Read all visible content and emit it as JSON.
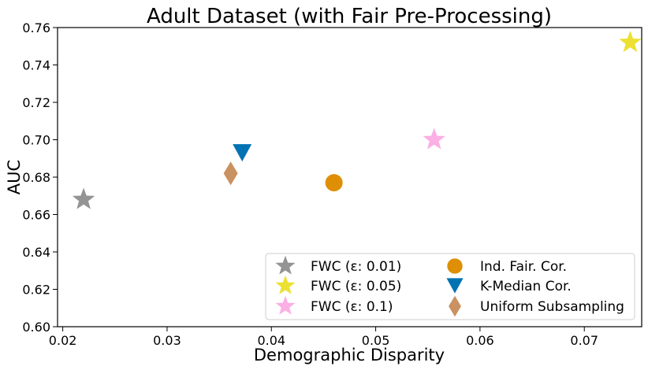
{
  "chart_data": {
    "type": "scatter",
    "title": "Adult Dataset (with Fair Pre-Processing)",
    "xlabel": "Demographic Disparity",
    "ylabel": "AUC",
    "xlim": [
      0.0195,
      0.0755
    ],
    "ylim": [
      0.6,
      0.76
    ],
    "xticks": [
      "0.02",
      "0.03",
      "0.04",
      "0.05",
      "0.06",
      "0.07"
    ],
    "yticks": [
      "0.60",
      "0.62",
      "0.64",
      "0.66",
      "0.68",
      "0.70",
      "0.72",
      "0.74",
      "0.76"
    ],
    "grid": false,
    "legend_position": "lower-right",
    "series": [
      {
        "name": "FWC (ε: 0.01)",
        "marker": "star",
        "color": "#949494",
        "x": 0.022,
        "y": 0.668
      },
      {
        "name": "FWC (ε: 0.05)",
        "marker": "star",
        "color": "#ece133",
        "x": 0.0744,
        "y": 0.752
      },
      {
        "name": "FWC (ε: 0.1)",
        "marker": "star",
        "color": "#fbafe4",
        "x": 0.0556,
        "y": 0.7
      },
      {
        "name": "Ind. Fair. Cor.",
        "marker": "circle",
        "color": "#de8f05",
        "x": 0.046,
        "y": 0.677
      },
      {
        "name": "K-Median Cor.",
        "marker": "triangle-down",
        "color": "#0173b2",
        "x": 0.0372,
        "y": 0.693
      },
      {
        "name": "Uniform Subsampling",
        "marker": "diamond",
        "color": "#ca9161",
        "x": 0.0361,
        "y": 0.682
      }
    ]
  }
}
